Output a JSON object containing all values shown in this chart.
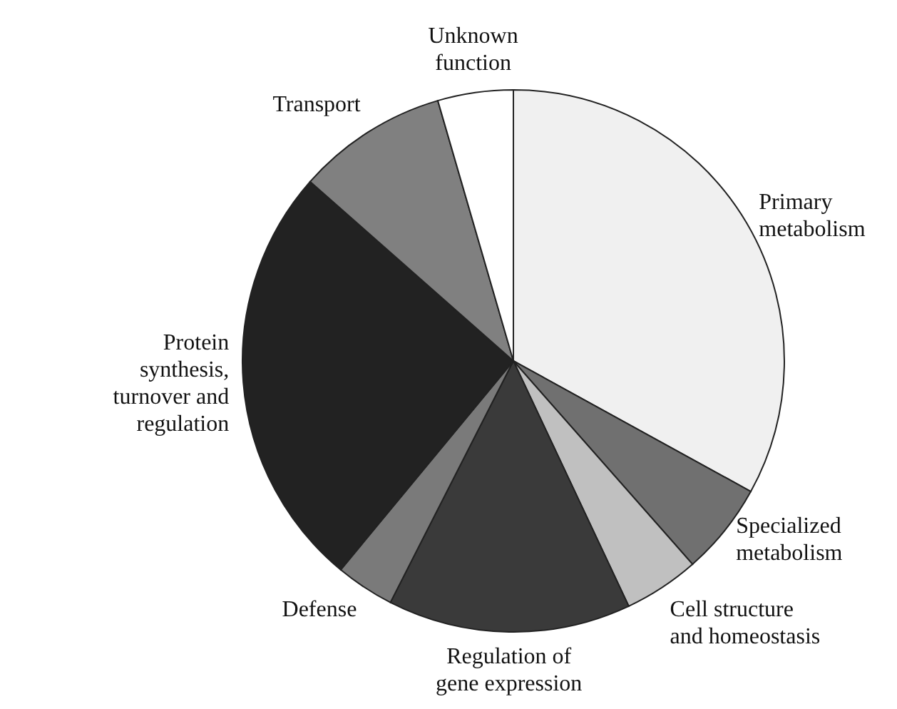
{
  "chart_data": {
    "type": "pie",
    "categories": [
      "Primary metabolism",
      "Specialized metabolism",
      "Cell structure and homeostasis",
      "Regulation of gene expression",
      "Defense",
      "Protein synthesis, turnover and regulation",
      "Transport",
      "Unknown function"
    ],
    "values": [
      33,
      5.5,
      4.5,
      14.5,
      3.5,
      25.5,
      9,
      4.5
    ],
    "colors": [
      "#f0f0f0",
      "#707070",
      "#c0c0c0",
      "#3a3a3a",
      "#7a7a7a",
      "#222222",
      "#808080",
      "#ffffff"
    ],
    "legend": false
  }
}
